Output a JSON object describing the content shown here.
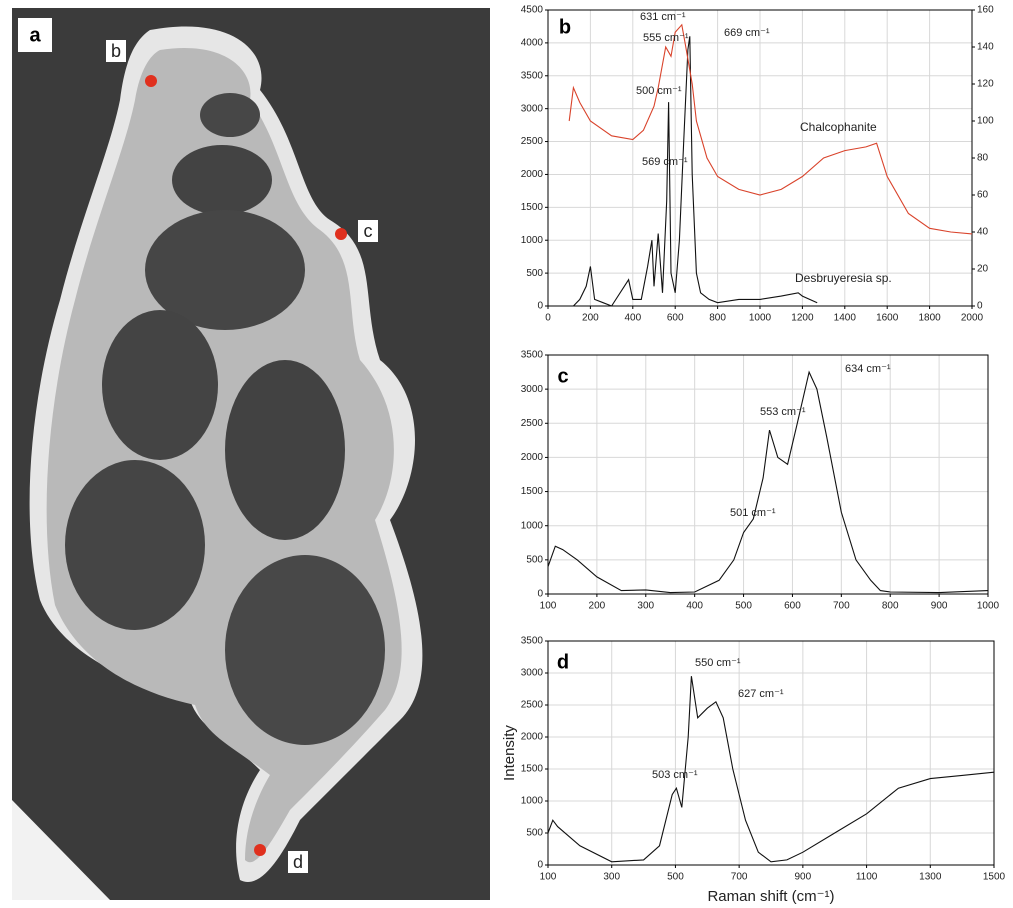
{
  "image_panel": {
    "label": "a",
    "points": [
      "b",
      "c",
      "d"
    ]
  },
  "chart_data": [
    {
      "type": "line",
      "label": "b",
      "grid": true,
      "xlim": [
        0,
        2000
      ],
      "xticks": [
        0,
        200,
        400,
        600,
        800,
        1000,
        1200,
        1400,
        1600,
        1800,
        2000
      ],
      "ylim": [
        0,
        4500
      ],
      "yticks": [
        0,
        500,
        1000,
        1500,
        2000,
        2500,
        3000,
        3500,
        4000,
        4500
      ],
      "y2lim": [
        0,
        160
      ],
      "y2ticks": [
        0,
        20,
        40,
        60,
        80,
        100,
        120,
        140,
        160
      ],
      "series": [
        {
          "name": "Chalcophanite",
          "color": "#111111",
          "x": [
            120,
            150,
            180,
            200,
            220,
            260,
            300,
            380,
            400,
            440,
            470,
            490,
            500,
            520,
            540,
            560,
            569,
            580,
            600,
            620,
            640,
            660,
            669,
            680,
            700,
            720,
            760,
            800,
            900,
            1000,
            1100,
            1180,
            1200,
            1270
          ],
          "values": [
            0,
            100,
            300,
            600,
            100,
            50,
            0,
            400,
            100,
            100,
            600,
            1000,
            300,
            1100,
            200,
            1600,
            3100,
            500,
            200,
            1000,
            2500,
            3900,
            4100,
            2000,
            500,
            200,
            100,
            50,
            100,
            100,
            150,
            200,
            150,
            50
          ]
        },
        {
          "name": "Desbruyeresia sp.",
          "color": "#d9432b",
          "axis": "y2",
          "x": [
            100,
            120,
            150,
            200,
            300,
            400,
            450,
            500,
            520,
            555,
            580,
            600,
            631,
            650,
            680,
            700,
            750,
            800,
            900,
            1000,
            1100,
            1200,
            1300,
            1400,
            1500,
            1550,
            1600,
            1700,
            1800,
            1900,
            2000
          ],
          "values": [
            100,
            118,
            110,
            100,
            92,
            90,
            95,
            108,
            118,
            140,
            135,
            148,
            152,
            140,
            120,
            100,
            80,
            70,
            63,
            60,
            63,
            70,
            80,
            84,
            86,
            88,
            70,
            50,
            42,
            40,
            39
          ]
        }
      ],
      "annotations": [
        {
          "text": "631 cm⁻¹",
          "color": "#d9432b"
        },
        {
          "text": "555 cm⁻¹",
          "color": "#d9432b"
        },
        {
          "text": "500 cm⁻¹",
          "color": "#d9432b"
        },
        {
          "text": "669 cm⁻¹",
          "color": "#111111"
        },
        {
          "text": "569 cm⁻¹",
          "color": "#111111"
        }
      ]
    },
    {
      "type": "line",
      "label": "c",
      "grid": true,
      "color": "#111111",
      "xlim": [
        100,
        1000
      ],
      "xticks": [
        100,
        200,
        300,
        400,
        500,
        600,
        700,
        800,
        900,
        1000
      ],
      "ylim": [
        0,
        3500
      ],
      "yticks": [
        0,
        500,
        1000,
        1500,
        2000,
        2500,
        3000,
        3500
      ],
      "x": [
        100,
        115,
        130,
        160,
        200,
        250,
        300,
        350,
        400,
        450,
        480,
        500,
        520,
        540,
        553,
        570,
        590,
        610,
        634,
        650,
        670,
        700,
        730,
        760,
        780,
        800,
        900,
        1000
      ],
      "values": [
        400,
        700,
        650,
        500,
        250,
        50,
        60,
        20,
        30,
        200,
        500,
        900,
        1100,
        1700,
        2400,
        2000,
        1900,
        2500,
        3250,
        3000,
        2300,
        1200,
        500,
        200,
        50,
        30,
        20,
        50
      ],
      "annotations": [
        {
          "text": "634 cm⁻¹",
          "color": "#111111"
        },
        {
          "text": "553 cm⁻¹",
          "color": "#111111"
        },
        {
          "text": "501 cm⁻¹",
          "color": "#111111"
        }
      ]
    },
    {
      "type": "line",
      "label": "d",
      "grid": true,
      "color": "#111111",
      "x_label": "Raman shift (cm⁻¹)",
      "y_label": "Intensity",
      "xlim": [
        100,
        1500
      ],
      "xticks": [
        100,
        300,
        500,
        700,
        900,
        1100,
        1300,
        1500
      ],
      "ylim": [
        0,
        3500
      ],
      "yticks": [
        0,
        500,
        1000,
        1500,
        2000,
        2500,
        3000,
        3500
      ],
      "x": [
        100,
        115,
        130,
        200,
        300,
        400,
        450,
        490,
        503,
        520,
        540,
        550,
        570,
        600,
        627,
        650,
        680,
        720,
        760,
        800,
        850,
        900,
        1000,
        1100,
        1200,
        1300,
        1400,
        1500
      ],
      "values": [
        500,
        700,
        600,
        300,
        50,
        80,
        300,
        1100,
        1200,
        900,
        2000,
        2950,
        2300,
        2450,
        2550,
        2300,
        1500,
        700,
        200,
        50,
        80,
        200,
        500,
        800,
        1200,
        1350,
        1400,
        1450
      ],
      "annotations": [
        {
          "text": "550 cm⁻¹",
          "color": "#111111"
        },
        {
          "text": "627 cm⁻¹",
          "color": "#111111"
        },
        {
          "text": "503 cm⁻¹",
          "color": "#111111"
        }
      ]
    }
  ]
}
